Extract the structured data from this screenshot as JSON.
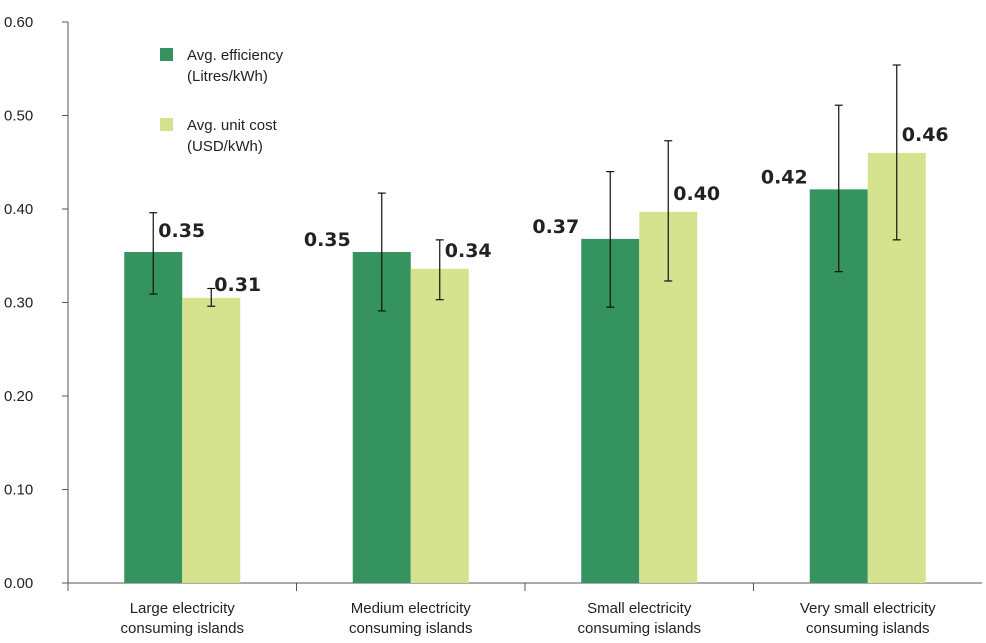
{
  "chart_data": {
    "type": "bar",
    "categories": [
      [
        "Large electricity",
        "consuming islands"
      ],
      [
        "Medium electricity",
        "consuming islands"
      ],
      [
        "Small electricity",
        "consuming islands"
      ],
      [
        "Very small electricity",
        "consuming islands"
      ]
    ],
    "series": [
      {
        "name": [
          "Avg. efficiency",
          "(Litres/kWh)"
        ],
        "color": "#35935f",
        "values": [
          0.354,
          0.354,
          0.368,
          0.421
        ],
        "labels": [
          "0.35",
          "0.35",
          "0.37",
          "0.42"
        ],
        "error_low": [
          0.309,
          0.291,
          0.295,
          0.333
        ],
        "error_high": [
          0.396,
          0.417,
          0.44,
          0.511
        ]
      },
      {
        "name": [
          "Avg. unit cost",
          "(USD/kWh)"
        ],
        "color": "#d5e38f",
        "values": [
          0.305,
          0.336,
          0.397,
          0.46
        ],
        "labels": [
          "0.31",
          "0.34",
          "0.40",
          "0.46"
        ],
        "error_low": [
          0.296,
          0.303,
          0.323,
          0.367
        ],
        "error_high": [
          0.315,
          0.367,
          0.473,
          0.554
        ]
      }
    ],
    "ylim": [
      0,
      0.6
    ],
    "yticks": [
      0,
      0.1,
      0.2,
      0.3,
      0.4,
      0.5,
      0.6
    ],
    "ytick_labels": [
      "0.00",
      "0.10",
      "0.20",
      "0.30",
      "0.40",
      "0.50",
      "0.60"
    ],
    "grid": false,
    "legend": "top-left"
  }
}
